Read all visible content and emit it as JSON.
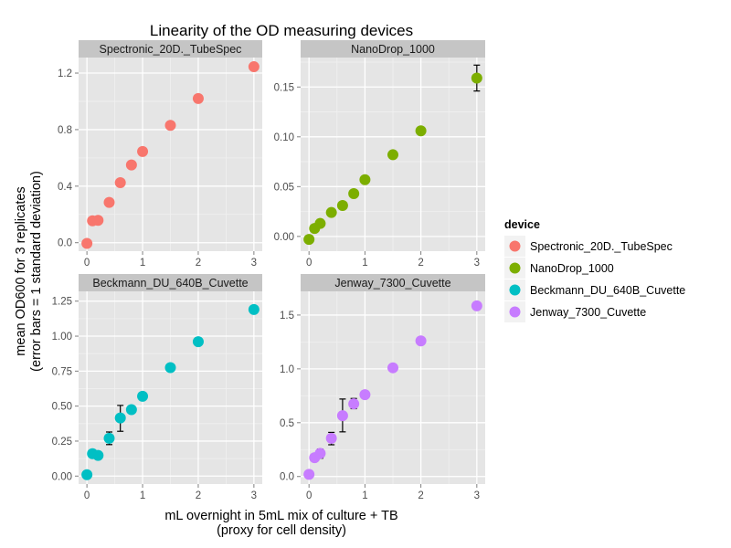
{
  "chart_data": {
    "type": "scatter",
    "title": "Linearity of the OD measuring devices",
    "xlabel": [
      "mL overnight in 5mL mix of culture + TB",
      "(proxy for cell density)"
    ],
    "ylabel": [
      "mean OD600 for 3 replicates",
      "(error bars = 1 standard deviation)"
    ],
    "legend": {
      "title": "device",
      "placement": "right",
      "entries": [
        {
          "label": "Spectronic_20D._TubeSpec",
          "color": "#F8766D"
        },
        {
          "label": "NanoDrop_1000",
          "color": "#7CAE00"
        },
        {
          "label": "Beckmann_DU_640B_Cuvette",
          "color": "#00BFC4"
        },
        {
          "label": "Jenway_7300_Cuvette",
          "color": "#C77CFF"
        }
      ]
    },
    "x_ticks": [
      "0",
      "1",
      "2",
      "3"
    ],
    "x_tick_values": [
      0,
      1,
      2,
      3
    ],
    "xlim": [
      -0.15,
      3.15
    ],
    "grid": true,
    "facets": [
      {
        "name": "Spectronic_20D._TubeSpec",
        "color": "#F8766D",
        "ylim": [
          -0.06,
          1.31
        ],
        "y_ticks": [
          "0.0",
          "0.4",
          "0.8",
          "1.2"
        ],
        "y_tick_values": [
          0.0,
          0.4,
          0.8,
          1.2
        ],
        "points": [
          {
            "x": 0.0,
            "y": -0.005
          },
          {
            "x": 0.1,
            "y": 0.155
          },
          {
            "x": 0.2,
            "y": 0.158
          },
          {
            "x": 0.4,
            "y": 0.285
          },
          {
            "x": 0.6,
            "y": 0.425
          },
          {
            "x": 0.8,
            "y": 0.55
          },
          {
            "x": 1.0,
            "y": 0.645
          },
          {
            "x": 1.5,
            "y": 0.83
          },
          {
            "x": 2.0,
            "y": 1.02
          },
          {
            "x": 3.0,
            "y": 1.245
          }
        ]
      },
      {
        "name": "NanoDrop_1000",
        "color": "#7CAE00",
        "ylim": [
          -0.0148,
          0.1796
        ],
        "y_ticks": [
          "0.00",
          "0.05",
          "0.10",
          "0.15"
        ],
        "y_tick_values": [
          0.0,
          0.05,
          0.1,
          0.15
        ],
        "points": [
          {
            "x": 0.0,
            "y": -0.003
          },
          {
            "x": 0.1,
            "y": 0.008
          },
          {
            "x": 0.2,
            "y": 0.013
          },
          {
            "x": 0.4,
            "y": 0.024
          },
          {
            "x": 0.6,
            "y": 0.031
          },
          {
            "x": 0.8,
            "y": 0.043
          },
          {
            "x": 1.0,
            "y": 0.057
          },
          {
            "x": 1.5,
            "y": 0.082
          },
          {
            "x": 2.0,
            "y": 0.106
          },
          {
            "x": 3.0,
            "y": 0.159,
            "err_low": 0.146,
            "err_high": 0.172
          }
        ]
      },
      {
        "name": "Beckmann_DU_640B_Cuvette",
        "color": "#00BFC4",
        "ylim": [
          -0.057,
          1.32
        ],
        "y_ticks": [
          "0.00",
          "0.25",
          "0.50",
          "0.75",
          "1.00",
          "1.25"
        ],
        "y_tick_values": [
          0.0,
          0.25,
          0.5,
          0.75,
          1.0,
          1.25
        ],
        "points": [
          {
            "x": 0.0,
            "y": 0.01
          },
          {
            "x": 0.1,
            "y": 0.16
          },
          {
            "x": 0.2,
            "y": 0.148
          },
          {
            "x": 0.4,
            "y": 0.27,
            "err_low": 0.225,
            "err_high": 0.315
          },
          {
            "x": 0.6,
            "y": 0.415,
            "err_low": 0.32,
            "err_high": 0.505
          },
          {
            "x": 0.8,
            "y": 0.475
          },
          {
            "x": 1.0,
            "y": 0.57
          },
          {
            "x": 1.5,
            "y": 0.775
          },
          {
            "x": 2.0,
            "y": 0.96
          },
          {
            "x": 3.0,
            "y": 1.19
          }
        ]
      },
      {
        "name": "Jenway_7300_Cuvette",
        "color": "#C77CFF",
        "ylim": [
          -0.07,
          1.72
        ],
        "y_ticks": [
          "0.0",
          "0.5",
          "1.0",
          "1.5"
        ],
        "y_tick_values": [
          0.0,
          0.5,
          1.0,
          1.5
        ],
        "points": [
          {
            "x": 0.0,
            "y": 0.02
          },
          {
            "x": 0.1,
            "y": 0.175
          },
          {
            "x": 0.2,
            "y": 0.215,
            "err_low": 0.17,
            "err_high": 0.255
          },
          {
            "x": 0.4,
            "y": 0.355,
            "err_low": 0.295,
            "err_high": 0.41
          },
          {
            "x": 0.6,
            "y": 0.565,
            "err_low": 0.415,
            "err_high": 0.72
          },
          {
            "x": 0.8,
            "y": 0.675,
            "err_low": 0.63,
            "err_high": 0.725
          },
          {
            "x": 1.0,
            "y": 0.76
          },
          {
            "x": 1.5,
            "y": 1.01
          },
          {
            "x": 2.0,
            "y": 1.26
          },
          {
            "x": 3.0,
            "y": 1.585
          }
        ]
      }
    ]
  }
}
